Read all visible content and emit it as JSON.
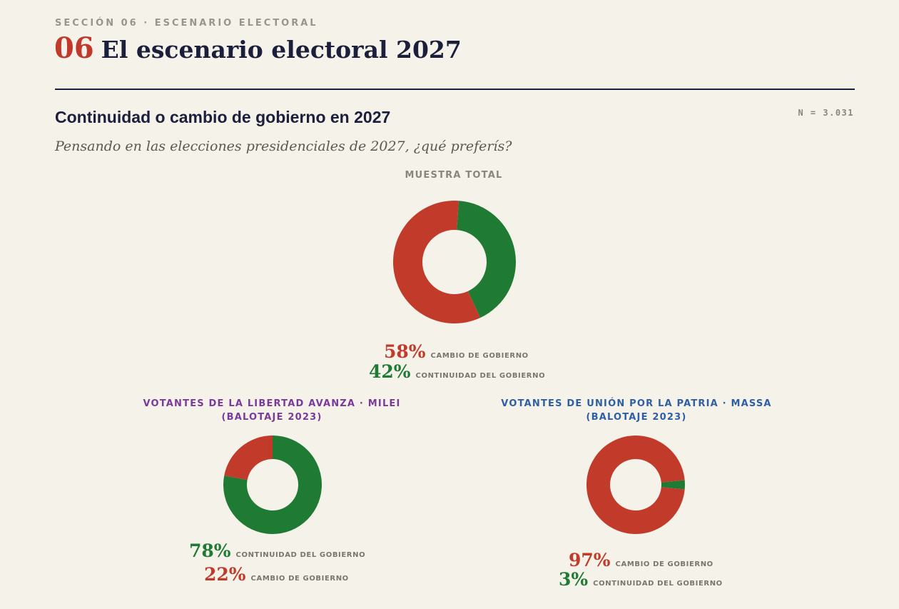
{
  "header": {
    "eyebrow": "SECCIÓN 06 · ESCENARIO ELECTORAL",
    "section_number": "06",
    "section_title": "El escenario electoral 2027"
  },
  "chart": {
    "title": "Continuidad o cambio de gobierno en 2027",
    "sample": "N = 3.031",
    "question": "Pensando en las elecciones presidenciales de 2027, ¿qué preferís?"
  },
  "colors": {
    "cambio": "#c23b2a",
    "continuidad": "#1f7a33",
    "libertad": "#7a3a9a",
    "union": "#2e5fa3"
  },
  "chart_data": [
    {
      "type": "pie",
      "title": "MUESTRA TOTAL",
      "slices": [
        {
          "key": "continuidad",
          "label": "CONTINUIDAD DEL GOBIERNO",
          "value": 42,
          "text": "42%"
        },
        {
          "key": "cambio",
          "label": "CAMBIO DE GOBIERNO",
          "value": 58,
          "text": "58%"
        }
      ]
    },
    {
      "type": "pie",
      "title": "VOTANTES DE LA LIBERTAD AVANZA · MILEI",
      "subtitle": "(BALOTAJE 2023)",
      "slices": [
        {
          "key": "continuidad",
          "label": "CONTINUIDAD DEL GOBIERNO",
          "value": 78,
          "text": "78%"
        },
        {
          "key": "cambio",
          "label": "CAMBIO DE GOBIERNO",
          "value": 22,
          "text": "22%"
        }
      ]
    },
    {
      "type": "pie",
      "title": "VOTANTES DE UNIÓN POR LA PATRIA · MASSA",
      "subtitle": "(BALOTAJE 2023)",
      "slices": [
        {
          "key": "continuidad",
          "label": "CONTINUIDAD DEL GOBIERNO",
          "value": 3,
          "text": "3%"
        },
        {
          "key": "cambio",
          "label": "CAMBIO DE GOBIERNO",
          "value": 97,
          "text": "97%"
        }
      ]
    }
  ]
}
